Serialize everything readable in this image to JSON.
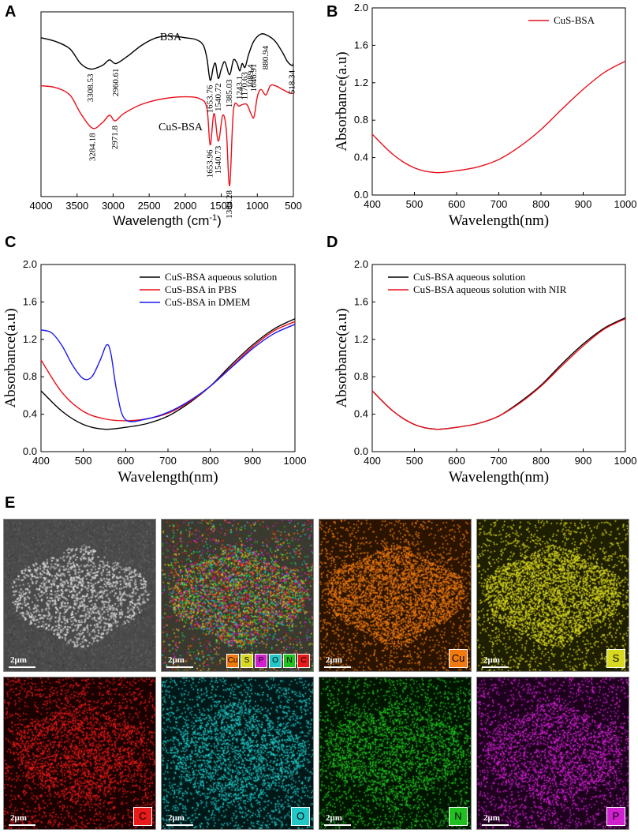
{
  "panel_labels": [
    "A",
    "B",
    "C",
    "D",
    "E"
  ],
  "chart_data": [
    {
      "panel": "A",
      "type": "line",
      "xlabel": "Wavelength (cm⁻¹)",
      "xlim": [
        4000,
        500
      ],
      "xticks": [
        4000,
        3500,
        3000,
        2500,
        2000,
        1500,
        1000,
        500
      ],
      "series": [
        {
          "name": "BSA",
          "color": "#000000",
          "x": [
            4000,
            3800,
            3600,
            3450,
            3308.53,
            3150,
            3050,
            2960.61,
            2800,
            2600,
            2400,
            2200,
            2000,
            1850,
            1750,
            1700,
            1653.76,
            1610,
            1580,
            1540.72,
            1500,
            1450,
            1385.03,
            1330,
            1280,
            1243.1,
            1210,
            1170.63,
            1120,
            1050,
            950,
            850,
            750,
            650,
            580,
            518.34,
            500
          ],
          "y": [
            0.86,
            0.84,
            0.8,
            0.72,
            0.69,
            0.71,
            0.74,
            0.72,
            0.76,
            0.82,
            0.86,
            0.87,
            0.86,
            0.85,
            0.82,
            0.75,
            0.63,
            0.7,
            0.72,
            0.64,
            0.69,
            0.73,
            0.66,
            0.74,
            0.72,
            0.68,
            0.72,
            0.7,
            0.77,
            0.84,
            0.88,
            0.87,
            0.84,
            0.78,
            0.73,
            0.71,
            0.72
          ]
        },
        {
          "name": "CuS-BSA",
          "color": "#e8101b",
          "x": [
            4000,
            3800,
            3600,
            3450,
            3284.18,
            3150,
            3050,
            2971.8,
            2850,
            2600,
            2300,
            2000,
            1800,
            1700,
            1653.96,
            1600,
            1540.73,
            1480,
            1430,
            1384.28,
            1330,
            1250,
            1150,
            1089.4,
            1046.91,
            1000,
            950,
            880.94,
            820,
            750,
            650,
            550,
            500
          ],
          "y": [
            0.6,
            0.59,
            0.55,
            0.45,
            0.37,
            0.4,
            0.44,
            0.41,
            0.45,
            0.5,
            0.53,
            0.54,
            0.53,
            0.48,
            0.28,
            0.45,
            0.3,
            0.44,
            0.36,
            0.06,
            0.47,
            0.49,
            0.5,
            0.45,
            0.43,
            0.54,
            0.58,
            0.55,
            0.6,
            0.6,
            0.58,
            0.56,
            0.56
          ]
        }
      ],
      "annotations": {
        "BSA": [
          "3308.53",
          "2960.61",
          "1653.76",
          "1540.72",
          "1385.03",
          "1243.1",
          "1170.63",
          "518.34"
        ],
        "CuS-BSA": [
          "3284.18",
          "2971.8",
          "1653.96",
          "1540.73",
          "1384.28",
          "1089.4",
          "1046.91",
          "880.94"
        ]
      }
    },
    {
      "panel": "B",
      "type": "line",
      "xlabel": "Wavelength(nm)",
      "ylabel": "Absorbance(a.u)",
      "xlim": [
        400,
        1000
      ],
      "ylim": [
        0,
        2.0
      ],
      "xticks": [
        400,
        500,
        600,
        700,
        800,
        900,
        1000
      ],
      "yticks": [
        "0.0",
        "0.4",
        "0.8",
        "1.2",
        "1.6",
        "2.0"
      ],
      "legend_position": "top-right",
      "series": [
        {
          "name": "CuS-BSA",
          "color": "#e8101b",
          "x": [
            400,
            450,
            500,
            550,
            600,
            650,
            700,
            750,
            800,
            850,
            900,
            950,
            1000
          ],
          "y": [
            0.65,
            0.43,
            0.29,
            0.24,
            0.26,
            0.3,
            0.38,
            0.52,
            0.7,
            0.92,
            1.13,
            1.31,
            1.43
          ]
        }
      ]
    },
    {
      "panel": "C",
      "type": "line",
      "xlabel": "Wavelength(nm)",
      "ylabel": "Absorbance(a.u)",
      "xlim": [
        400,
        1000
      ],
      "ylim": [
        0,
        2.0
      ],
      "xticks": [
        400,
        500,
        600,
        700,
        800,
        900,
        1000
      ],
      "yticks": [
        "0.0",
        "0.4",
        "0.8",
        "1.2",
        "1.6",
        "2.0"
      ],
      "legend_position": "top-right",
      "series": [
        {
          "name": "CuS-BSA aqueous solution",
          "color": "#000000",
          "x": [
            400,
            450,
            500,
            550,
            600,
            650,
            700,
            750,
            800,
            850,
            900,
            950,
            1000
          ],
          "y": [
            0.65,
            0.43,
            0.29,
            0.24,
            0.26,
            0.3,
            0.38,
            0.52,
            0.7,
            0.93,
            1.14,
            1.31,
            1.42
          ]
        },
        {
          "name": "CuS-BSA in PBS",
          "color": "#e8101b",
          "x": [
            400,
            450,
            500,
            550,
            600,
            650,
            700,
            750,
            800,
            850,
            900,
            950,
            1000
          ],
          "y": [
            0.98,
            0.63,
            0.43,
            0.35,
            0.33,
            0.35,
            0.41,
            0.53,
            0.7,
            0.91,
            1.12,
            1.29,
            1.39
          ]
        },
        {
          "name": "CuS-BSA in DMEM",
          "color": "#1a1aee",
          "x": [
            400,
            425,
            450,
            475,
            500,
            520,
            540,
            555,
            565,
            580,
            600,
            650,
            700,
            750,
            800,
            850,
            900,
            950,
            1000
          ],
          "y": [
            1.3,
            1.27,
            1.13,
            0.92,
            0.78,
            0.8,
            0.98,
            1.14,
            1.05,
            0.62,
            0.34,
            0.35,
            0.42,
            0.54,
            0.7,
            0.9,
            1.1,
            1.26,
            1.36
          ]
        }
      ]
    },
    {
      "panel": "D",
      "type": "line",
      "xlabel": "Wavelength(nm)",
      "ylabel": "Absorbance(a.u)",
      "xlim": [
        400,
        1000
      ],
      "ylim": [
        0,
        2.0
      ],
      "xticks": [
        400,
        500,
        600,
        700,
        800,
        900,
        1000
      ],
      "yticks": [
        "0.0",
        "0.4",
        "0.8",
        "1.2",
        "1.6",
        "2.0"
      ],
      "legend_position": "top-right",
      "series": [
        {
          "name": "CuS-BSA  aqueous solution",
          "color": "#000000",
          "x": [
            400,
            450,
            500,
            550,
            600,
            650,
            700,
            750,
            800,
            850,
            900,
            950,
            1000
          ],
          "y": [
            0.65,
            0.43,
            0.29,
            0.24,
            0.26,
            0.3,
            0.38,
            0.53,
            0.71,
            0.94,
            1.15,
            1.32,
            1.43
          ]
        },
        {
          "name": "CuS-BSA  aqueous solution with NIR",
          "color": "#e8101b",
          "x": [
            400,
            450,
            500,
            550,
            600,
            650,
            700,
            750,
            800,
            850,
            900,
            950,
            1000
          ],
          "y": [
            0.65,
            0.43,
            0.29,
            0.24,
            0.26,
            0.3,
            0.38,
            0.52,
            0.7,
            0.92,
            1.13,
            1.31,
            1.42
          ]
        }
      ]
    }
  ],
  "edx_maps": {
    "scale_label": "2μm",
    "tiles": [
      {
        "element": "",
        "base": "#585858",
        "dots": "#a9a9a9"
      },
      {
        "element": "mix",
        "base": "#3a3a30",
        "dots": "#c87a2a"
      },
      {
        "element": "Cu",
        "base": "#2a1400",
        "dots": "#f07a10"
      },
      {
        "element": "S",
        "base": "#1e1e00",
        "dots": "#d8d820"
      },
      {
        "element": "C",
        "base": "#1a0000",
        "dots": "#e81a1a"
      },
      {
        "element": "O",
        "base": "#001818",
        "dots": "#20c8c8"
      },
      {
        "element": "N",
        "base": "#001400",
        "dots": "#20c020"
      },
      {
        "element": "P",
        "base": "#1c001c",
        "dots": "#d020d0"
      }
    ],
    "mix_legend": [
      {
        "label": "Cu",
        "color": "#f07a10"
      },
      {
        "label": "S",
        "color": "#d8d820"
      },
      {
        "label": "P",
        "color": "#d020d0"
      },
      {
        "label": "O",
        "color": "#20c8c8"
      },
      {
        "label": "N",
        "color": "#20c020"
      },
      {
        "label": "C",
        "color": "#e81a1a"
      }
    ]
  }
}
